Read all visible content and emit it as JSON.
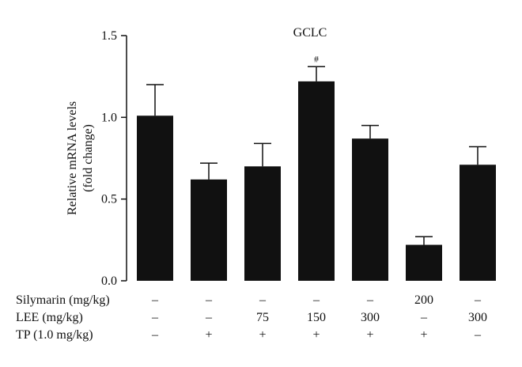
{
  "chart_data": {
    "type": "bar",
    "title": "GCLC",
    "ylabel_lines": [
      "Relative mRNA levels",
      "(fold change)"
    ],
    "ylim": [
      0,
      1.5
    ],
    "yticks": [
      "0.0",
      "0.5",
      "1.0",
      "1.5"
    ],
    "bar_color": "#111111",
    "values": [
      1.01,
      0.62,
      0.7,
      1.22,
      0.87,
      0.22,
      0.71
    ],
    "errors": [
      0.19,
      0.1,
      0.14,
      0.09,
      0.08,
      0.05,
      0.11
    ],
    "annotations": [
      "",
      "",
      "",
      "#",
      "",
      "",
      ""
    ],
    "conditions": [
      {
        "label": "Silymarin (mg/kg)",
        "values": [
          "–",
          "–",
          "–",
          "–",
          "–",
          "200",
          "–"
        ]
      },
      {
        "label": "LEE (mg/kg)",
        "values": [
          "–",
          "–",
          "75",
          "150",
          "300",
          "–",
          "300"
        ]
      },
      {
        "label": "TP (1.0 mg/kg)",
        "values": [
          "–",
          "+",
          "+",
          "+",
          "+",
          "+",
          "–"
        ]
      }
    ]
  }
}
